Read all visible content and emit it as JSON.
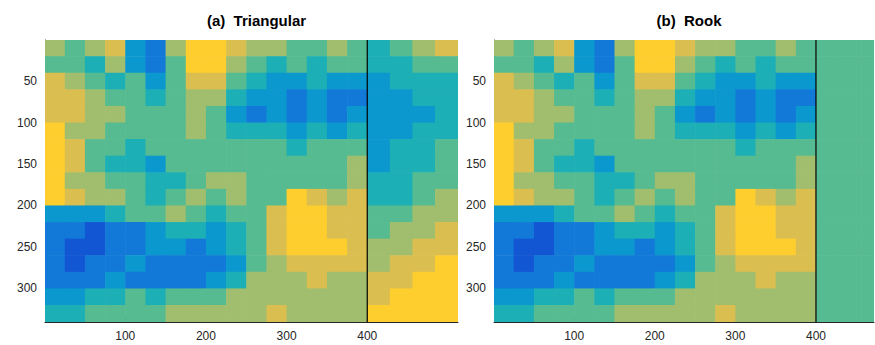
{
  "chart_data": [
    {
      "type": "heatmap",
      "title": "(a)  Triangular",
      "xlim": [
        0.5,
        512.5
      ],
      "ylim": [
        0.5,
        340.5
      ],
      "xticks": [
        100,
        200,
        300,
        400
      ],
      "yticks": [
        50,
        100,
        150,
        200,
        250,
        300
      ],
      "vline": 400,
      "clim": [
        0,
        9
      ],
      "x_edges": [
        0.5,
        25,
        50,
        75,
        100,
        125,
        150,
        175,
        200,
        225,
        250,
        275,
        300,
        325,
        350,
        375,
        400,
        428,
        456,
        484,
        512.5
      ],
      "y_edges": [
        0.5,
        20,
        40,
        60,
        80,
        100,
        120,
        140,
        160,
        180,
        200,
        220,
        240,
        260,
        280,
        300,
        320,
        340.5
      ],
      "cells": [
        [
          6,
          5,
          6,
          7,
          3,
          2,
          6,
          8,
          8,
          7,
          6,
          6,
          5,
          5,
          6,
          5,
          4,
          5,
          6,
          7
        ],
        [
          5,
          5,
          4,
          6,
          3,
          2,
          5,
          8,
          8,
          6,
          5,
          4,
          5,
          4,
          5,
          5,
          4,
          4,
          5,
          5
        ],
        [
          7,
          6,
          5,
          4,
          5,
          3,
          5,
          7,
          7,
          5,
          4,
          3,
          3,
          4,
          3,
          3,
          3,
          4,
          4,
          4
        ],
        [
          7,
          7,
          6,
          5,
          5,
          4,
          5,
          6,
          6,
          4,
          3,
          3,
          2,
          3,
          2,
          2,
          3,
          3,
          4,
          4
        ],
        [
          7,
          7,
          6,
          6,
          5,
          5,
          5,
          6,
          5,
          3,
          2,
          3,
          2,
          3,
          2,
          3,
          3,
          3,
          3,
          4
        ],
        [
          8,
          6,
          6,
          5,
          5,
          5,
          5,
          6,
          5,
          4,
          4,
          4,
          3,
          4,
          3,
          4,
          3,
          3,
          4,
          4
        ],
        [
          8,
          7,
          5,
          5,
          4,
          5,
          5,
          5,
          5,
          5,
          5,
          5,
          4,
          5,
          5,
          5,
          3,
          4,
          4,
          5
        ],
        [
          8,
          7,
          5,
          4,
          4,
          3,
          5,
          5,
          5,
          5,
          5,
          5,
          5,
          5,
          5,
          6,
          3,
          4,
          4,
          5
        ],
        [
          8,
          6,
          6,
          5,
          5,
          4,
          4,
          5,
          6,
          6,
          5,
          5,
          5,
          5,
          5,
          6,
          4,
          4,
          5,
          5
        ],
        [
          8,
          7,
          6,
          6,
          5,
          4,
          5,
          6,
          5,
          6,
          5,
          5,
          8,
          7,
          6,
          7,
          4,
          4,
          5,
          6
        ],
        [
          3,
          3,
          3,
          4,
          5,
          5,
          6,
          5,
          4,
          5,
          5,
          7,
          8,
          8,
          7,
          7,
          5,
          5,
          6,
          6
        ],
        [
          2,
          2,
          1,
          2,
          2,
          3,
          4,
          4,
          3,
          4,
          5,
          7,
          8,
          8,
          7,
          7,
          5,
          6,
          6,
          7
        ],
        [
          2,
          1,
          1,
          2,
          2,
          3,
          3,
          2,
          3,
          4,
          5,
          7,
          8,
          8,
          8,
          7,
          6,
          6,
          7,
          7
        ],
        [
          2,
          1,
          2,
          2,
          3,
          2,
          2,
          2,
          2,
          3,
          5,
          6,
          7,
          7,
          7,
          7,
          6,
          7,
          7,
          8
        ],
        [
          2,
          2,
          2,
          3,
          2,
          2,
          2,
          2,
          3,
          4,
          6,
          6,
          6,
          7,
          6,
          6,
          7,
          7,
          8,
          8
        ],
        [
          3,
          3,
          4,
          4,
          5,
          4,
          5,
          5,
          5,
          6,
          6,
          6,
          6,
          6,
          6,
          6,
          7,
          8,
          8,
          8
        ],
        [
          4,
          4,
          5,
          5,
          5,
          5,
          6,
          6,
          6,
          6,
          6,
          7,
          6,
          6,
          6,
          6,
          8,
          8,
          8,
          8
        ]
      ]
    },
    {
      "type": "heatmap",
      "title": "(b)  Rook",
      "xlim": [
        0.5,
        472
      ],
      "ylim": [
        0.5,
        340.5
      ],
      "xticks": [
        100,
        200,
        300,
        400
      ],
      "yticks": [
        50,
        100,
        150,
        200,
        250,
        300
      ],
      "vline": 400,
      "clim": [
        0,
        9
      ],
      "x_edges": [
        0.5,
        25,
        50,
        75,
        100,
        125,
        150,
        175,
        200,
        225,
        250,
        275,
        300,
        325,
        350,
        375,
        400,
        428,
        456,
        472
      ],
      "y_edges": [
        0.5,
        20,
        40,
        60,
        80,
        100,
        120,
        140,
        160,
        180,
        200,
        220,
        240,
        260,
        280,
        300,
        320,
        340.5
      ],
      "cells": [
        [
          6,
          5,
          6,
          7,
          3,
          2,
          6,
          8,
          8,
          7,
          6,
          6,
          5,
          5,
          6,
          5,
          5,
          5,
          5
        ],
        [
          5,
          5,
          4,
          6,
          3,
          2,
          5,
          8,
          8,
          6,
          5,
          4,
          5,
          4,
          5,
          5,
          5,
          5,
          5
        ],
        [
          7,
          6,
          5,
          4,
          5,
          3,
          5,
          7,
          7,
          5,
          4,
          3,
          3,
          4,
          3,
          3,
          5,
          5,
          5
        ],
        [
          7,
          7,
          6,
          5,
          5,
          4,
          5,
          6,
          6,
          4,
          3,
          3,
          2,
          3,
          2,
          2,
          5,
          5,
          5
        ],
        [
          7,
          7,
          6,
          6,
          5,
          5,
          5,
          6,
          5,
          3,
          2,
          3,
          2,
          3,
          2,
          3,
          5,
          5,
          5
        ],
        [
          8,
          6,
          6,
          5,
          5,
          5,
          5,
          6,
          5,
          4,
          4,
          4,
          3,
          4,
          3,
          4,
          5,
          5,
          5
        ],
        [
          8,
          7,
          5,
          5,
          4,
          5,
          5,
          5,
          5,
          5,
          5,
          5,
          4,
          5,
          5,
          5,
          5,
          5,
          5
        ],
        [
          8,
          7,
          5,
          4,
          4,
          3,
          5,
          5,
          5,
          5,
          5,
          5,
          5,
          5,
          5,
          6,
          5,
          5,
          5
        ],
        [
          8,
          6,
          6,
          5,
          5,
          4,
          4,
          5,
          6,
          6,
          5,
          5,
          5,
          5,
          5,
          6,
          5,
          5,
          5
        ],
        [
          8,
          7,
          6,
          6,
          5,
          4,
          5,
          6,
          5,
          6,
          5,
          5,
          8,
          7,
          6,
          7,
          5,
          5,
          5
        ],
        [
          3,
          3,
          3,
          4,
          5,
          5,
          6,
          5,
          4,
          5,
          5,
          7,
          8,
          8,
          7,
          7,
          5,
          5,
          5
        ],
        [
          2,
          2,
          1,
          2,
          2,
          3,
          4,
          4,
          3,
          4,
          5,
          7,
          8,
          8,
          7,
          7,
          5,
          5,
          5
        ],
        [
          2,
          1,
          1,
          2,
          2,
          3,
          3,
          2,
          3,
          4,
          5,
          7,
          8,
          8,
          8,
          7,
          5,
          5,
          5
        ],
        [
          2,
          1,
          2,
          2,
          3,
          2,
          2,
          2,
          2,
          3,
          5,
          6,
          7,
          7,
          7,
          7,
          5,
          5,
          5
        ],
        [
          2,
          2,
          2,
          3,
          2,
          2,
          2,
          2,
          3,
          4,
          6,
          6,
          6,
          7,
          6,
          6,
          5,
          5,
          5
        ],
        [
          3,
          3,
          4,
          4,
          5,
          4,
          5,
          5,
          5,
          6,
          6,
          6,
          6,
          6,
          6,
          6,
          5,
          5,
          5
        ],
        [
          4,
          4,
          5,
          5,
          5,
          5,
          6,
          6,
          6,
          6,
          6,
          7,
          6,
          6,
          6,
          6,
          5,
          5,
          5
        ]
      ]
    }
  ]
}
